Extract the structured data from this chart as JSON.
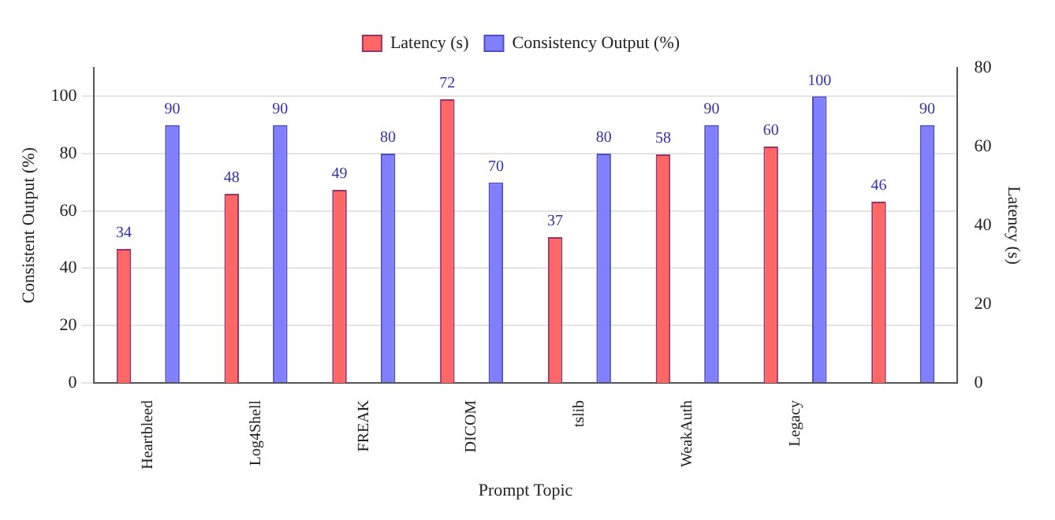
{
  "chart_data": {
    "type": "bar",
    "xlabel": "Prompt Topic",
    "ylabel": "Consistent Output (%)",
    "y2label": "Latency (s)",
    "categories": [
      "Heartbleed",
      "Log4Shell",
      "FREAK",
      "DICOM",
      "tslib",
      "WeakAuth",
      "Legacy",
      null
    ],
    "series": [
      {
        "name": "Latency (s)",
        "color": "#ff6666",
        "axis": "y2",
        "values": [
          34,
          48,
          49,
          72,
          37,
          58,
          60,
          46
        ]
      },
      {
        "name": "Consistency Output (%)",
        "color": "#8080ff",
        "values": [
          90,
          90,
          80,
          70,
          80,
          90,
          100,
          90
        ]
      }
    ],
    "ylim": [
      0,
      110
    ],
    "yticks": [
      0,
      20,
      40,
      60,
      80,
      100
    ],
    "y2lim": [
      0,
      80
    ],
    "y2ticks": [
      0,
      20,
      40,
      60,
      80
    ],
    "grid": "y",
    "legend": "top",
    "data_labels": true
  }
}
